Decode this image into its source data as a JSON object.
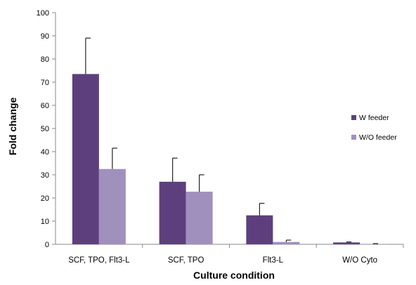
{
  "chart_data": {
    "type": "bar",
    "title": "",
    "xlabel": "Culture condition",
    "ylabel": "Fold change",
    "ylim": [
      0,
      100
    ],
    "yticks": [
      0,
      10,
      20,
      30,
      40,
      50,
      60,
      70,
      80,
      90,
      100
    ],
    "categories": [
      "SCF, TPO, Flt3-L",
      "SCF, TPO",
      "Flt3-L",
      "W/O Cyto"
    ],
    "series": [
      {
        "name": "W feeder",
        "color": "#5e3f7e",
        "values": [
          73.5,
          27,
          12.5,
          0.8
        ],
        "errors": [
          15.5,
          10.2,
          5.2,
          0.2
        ]
      },
      {
        "name": "W/O feeder",
        "color": "#a090bd",
        "values": [
          32.5,
          22.7,
          1.0,
          0.1
        ],
        "errors": [
          9.0,
          7.3,
          0.8,
          0.2
        ]
      }
    ],
    "legend_position": "right",
    "grid": false
  }
}
